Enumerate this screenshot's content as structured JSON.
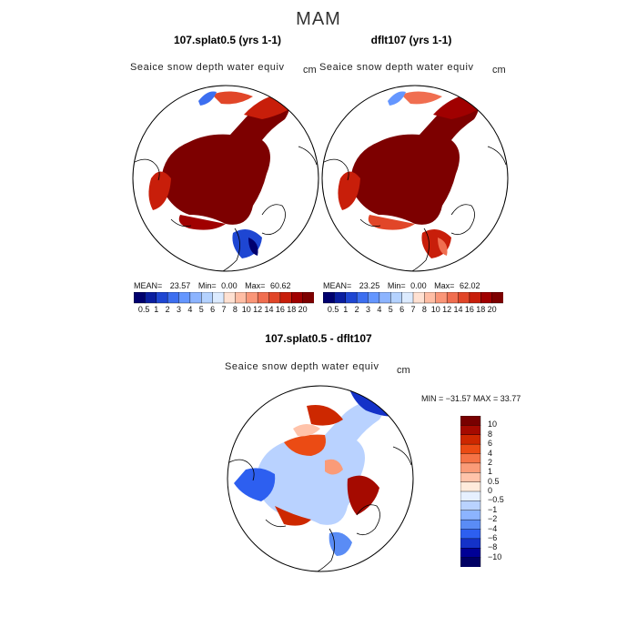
{
  "season": "MAM",
  "chart_data": [
    {
      "type": "heatmap",
      "title": "107.splat0.5 (yrs 1-1)",
      "variable": "Seaice snow depth water equiv",
      "units": "cm",
      "projection": "north polar stereographic",
      "stats": {
        "mean_label": "MEAN=",
        "mean": "23.57",
        "min_label": "Min=",
        "min": "0.00",
        "max_label": "Max=",
        "max": "60.62"
      },
      "colorbar_levels": [
        "0.5",
        "1",
        "2",
        "3",
        "4",
        "5",
        "6",
        "7",
        "8",
        "10",
        "12",
        "14",
        "16",
        "18",
        "20"
      ]
    },
    {
      "type": "heatmap",
      "title": "dflt107 (yrs 1-1)",
      "variable": "Seaice snow depth water equiv",
      "units": "cm",
      "projection": "north polar stereographic",
      "stats": {
        "mean_label": "MEAN=",
        "mean": "23.25",
        "min_label": "Min=",
        "min": "0.00",
        "max_label": "Max=",
        "max": "62.02"
      },
      "colorbar_levels": [
        "0.5",
        "1",
        "2",
        "3",
        "4",
        "5",
        "6",
        "7",
        "8",
        "10",
        "12",
        "14",
        "16",
        "18",
        "20"
      ]
    },
    {
      "type": "heatmap",
      "title": "107.splat0.5 - dflt107",
      "variable": "Seaice snow depth water equiv",
      "units": "cm",
      "projection": "north polar stereographic",
      "minmax_label": "MIN = −31.57 MAX =  33.77",
      "colorbar_levels": [
        "10",
        "8",
        "6",
        "4",
        "2",
        "1",
        "0.5",
        "0",
        "−0.5",
        "−1",
        "−2",
        "−4",
        "−6",
        "−8",
        "−10"
      ]
    }
  ],
  "colors": {
    "seq_colorbar": [
      "#00006e",
      "#0a1ea0",
      "#1e46d2",
      "#3c6ef0",
      "#6496ff",
      "#8cb4ff",
      "#b4d2ff",
      "#dcebff",
      "#ffe1d2",
      "#ffbea5",
      "#fa9678",
      "#f06e50",
      "#e14628",
      "#c81e0a",
      "#a00000",
      "#7d0000"
    ],
    "div_colorbar": [
      "#780000",
      "#a50a00",
      "#cd2800",
      "#eb4b14",
      "#f57346",
      "#fa9b78",
      "#ffc3aa",
      "#ffebdc",
      "#e6f0ff",
      "#b9d2ff",
      "#8cb4ff",
      "#5a8cf5",
      "#2d5ff0",
      "#1432c8",
      "#000096",
      "#000064"
    ],
    "field_dark": "#7d0000",
    "ocean": "#ffffff"
  }
}
